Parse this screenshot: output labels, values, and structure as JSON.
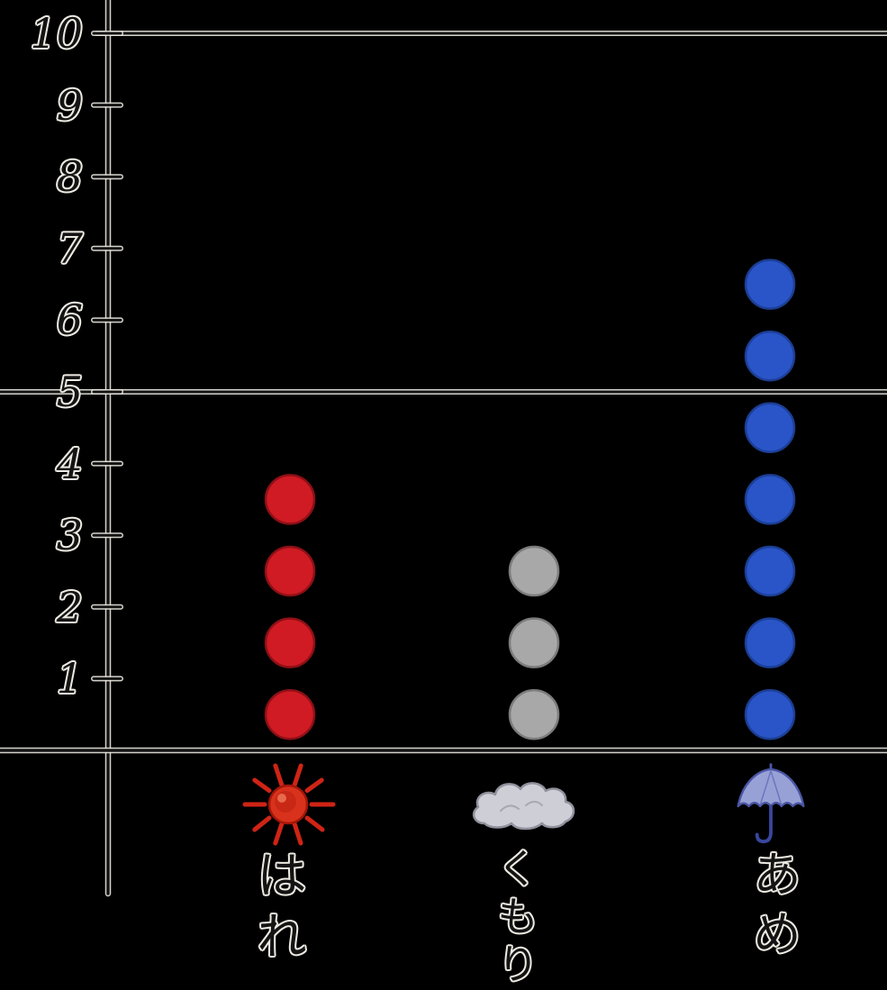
{
  "chart_data": {
    "type": "bar",
    "variant": "hand-drawn pictograph (stacked dot tally) of weather counts",
    "title": "",
    "xlabel": "",
    "ylabel": "",
    "categories": [
      "はれ",
      "くもり",
      "あめ"
    ],
    "values": [
      4,
      3,
      7
    ],
    "category_icons": [
      "sun-icon",
      "cloud-icon",
      "umbrella-icon"
    ],
    "dot_colors": [
      "#d01b24",
      "#a8a8a8",
      "#2a55c8"
    ],
    "dot_stroke_colors": [
      "#8e1016",
      "#7c7c7c",
      "#1c3f96"
    ],
    "ylim": [
      0,
      10
    ],
    "yticks": [
      "1",
      "2",
      "3",
      "4",
      "5",
      "6",
      "7",
      "8",
      "9",
      "10"
    ],
    "major_gridlines": [
      5,
      10
    ],
    "grid": "long horizontal rule lines at 5 and 10 only; short tick marks at every integer",
    "legend_position": "none"
  },
  "style": {
    "background": "#000000",
    "ink": "#141414",
    "halo": "#edeae2"
  }
}
